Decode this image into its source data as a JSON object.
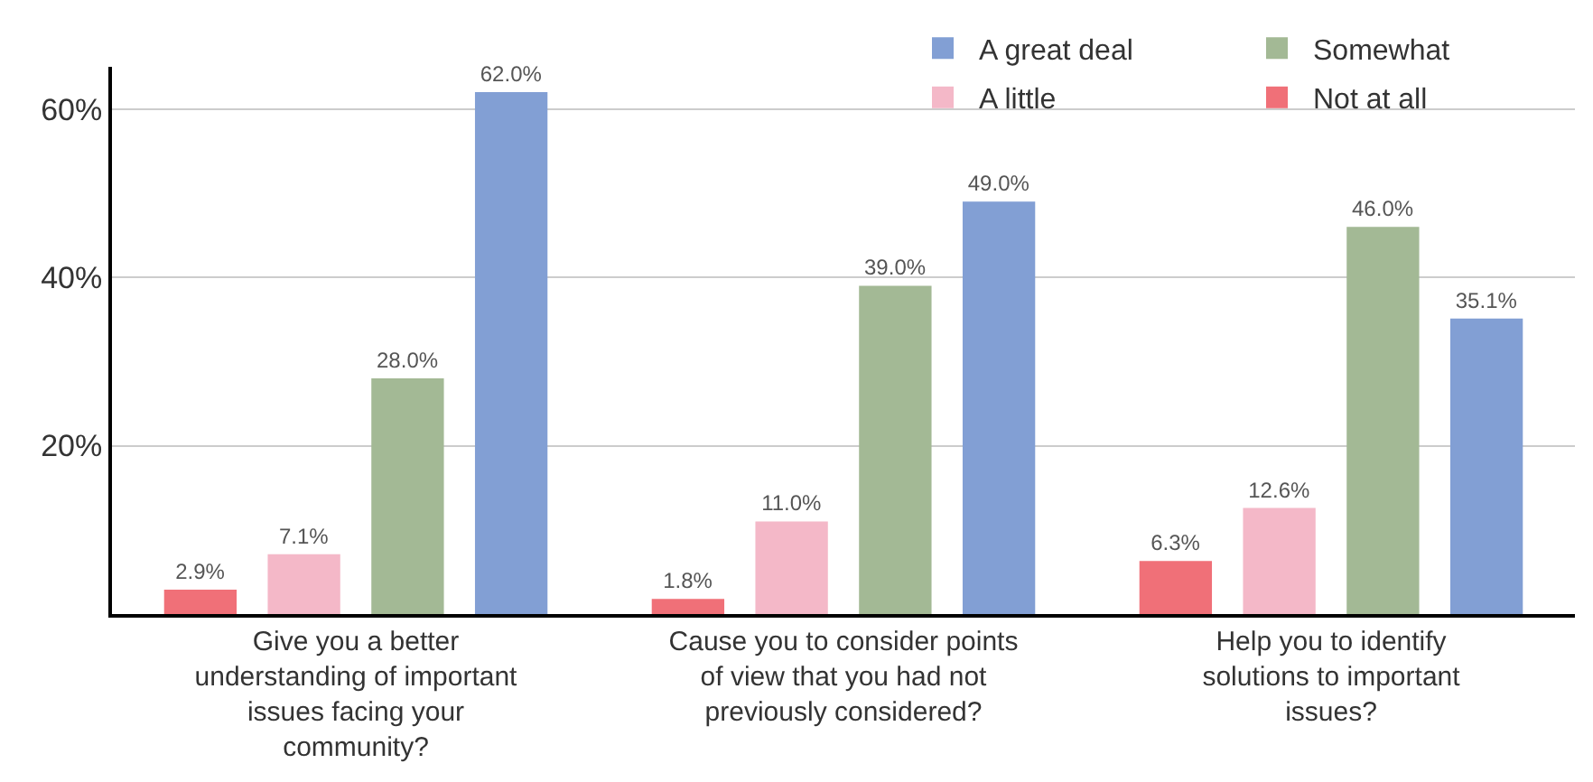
{
  "chart_data": {
    "type": "bar",
    "categories": [
      "Give you a better understanding of important issues facing your community?",
      "Cause you to consider points of view that you had not previously considered?",
      "Help you to identify solutions to important issues?"
    ],
    "series": [
      {
        "name": "Not at all",
        "color": "#f07078",
        "values": [
          2.9,
          1.8,
          6.3
        ],
        "value_labels": [
          "2.9%",
          "1.8%",
          "6.3%"
        ]
      },
      {
        "name": "A little",
        "color": "#f4b8c8",
        "values": [
          7.1,
          11.0,
          12.6
        ],
        "value_labels": [
          "7.1%",
          "11.0%",
          "12.6%"
        ]
      },
      {
        "name": "Somewhat",
        "color": "#a3b995",
        "values": [
          28.0,
          39.0,
          46.0
        ],
        "value_labels": [
          "28.0%",
          "39.0%",
          "46.0%"
        ]
      },
      {
        "name": "A great deal",
        "color": "#829fd4",
        "values": [
          62.0,
          49.0,
          35.1
        ],
        "value_labels": [
          "62.0%",
          "49.0%",
          "35.1%"
        ]
      }
    ],
    "ylim": [
      0,
      65
    ],
    "yticks": [
      {
        "value": 20,
        "label": "20%"
      },
      {
        "value": 40,
        "label": "40%"
      },
      {
        "value": 60,
        "label": "60%"
      }
    ],
    "grid": "y",
    "legend": "top right"
  }
}
